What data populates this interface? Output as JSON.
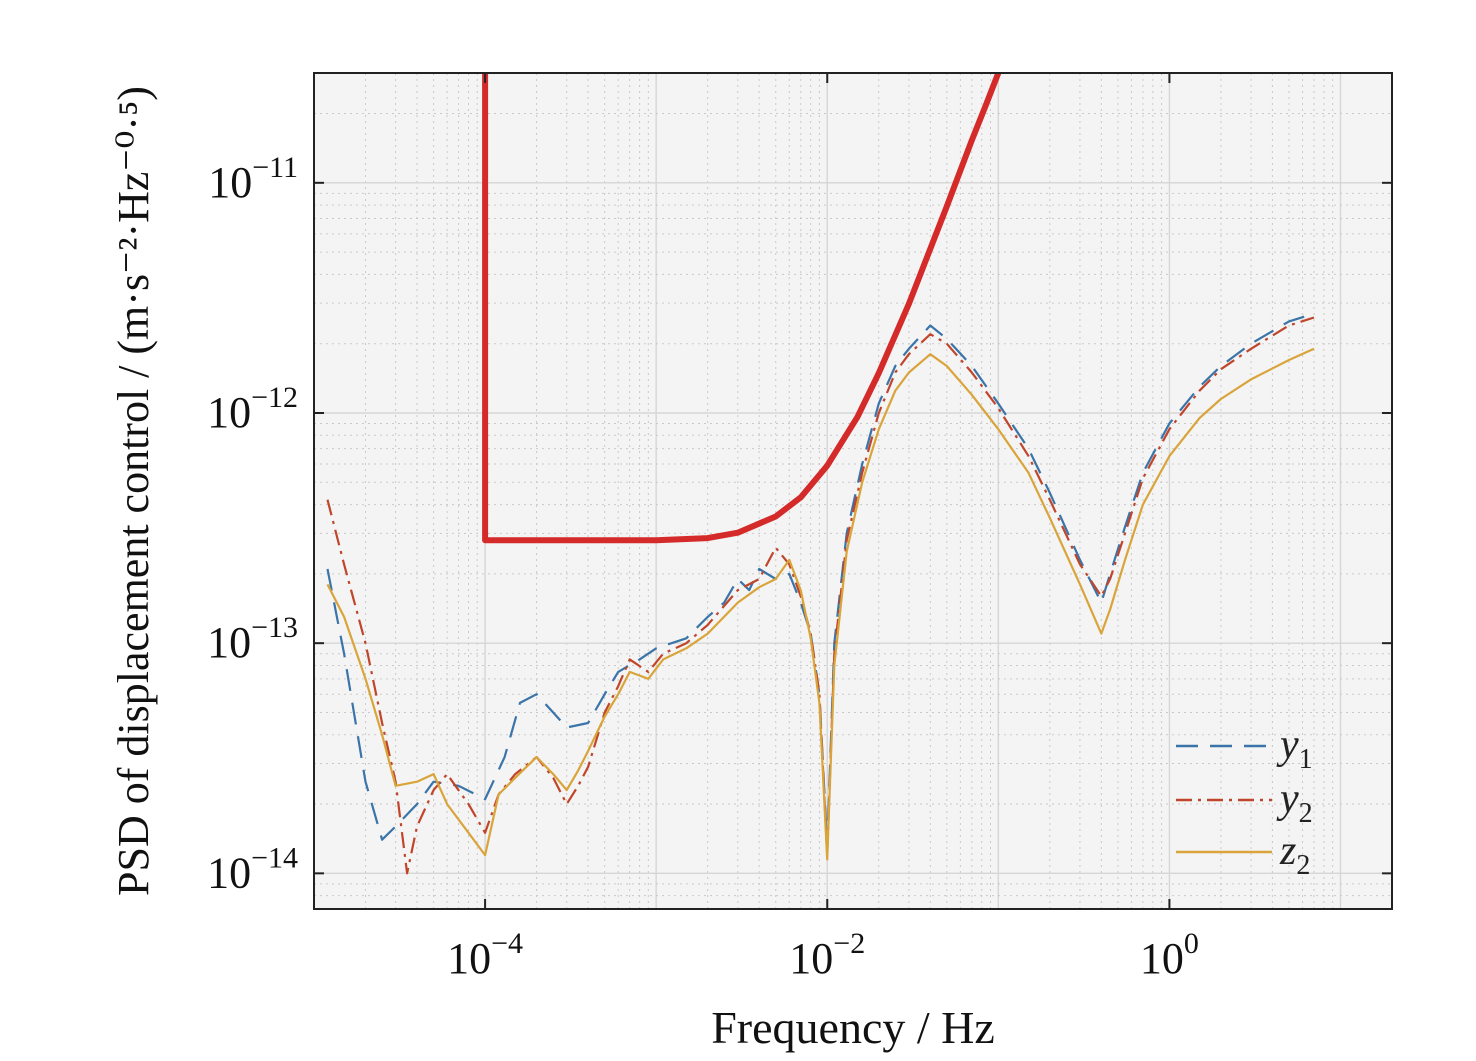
{
  "chart_data": {
    "type": "line",
    "title": "",
    "xlabel": "Frequency / Hz",
    "ylabel": "PSD of displacement control / (m·s⁻²·Hz⁻⁰·⁵)",
    "xscale": "log",
    "yscale": "log",
    "xlim": [
      1e-05,
      20
    ],
    "ylim": [
      7e-15,
      3e-11
    ],
    "grid": true,
    "legend_position": "bottom-right",
    "x_ticks": [
      {
        "value": 0.0001,
        "base": "10",
        "exp": "−4"
      },
      {
        "value": 0.01,
        "base": "10",
        "exp": "−2"
      },
      {
        "value": 1,
        "base": "10",
        "exp": "0"
      }
    ],
    "y_ticks": [
      {
        "value": 1e-14,
        "base": "10",
        "exp": "−14"
      },
      {
        "value": 1e-13,
        "base": "10",
        "exp": "−13"
      },
      {
        "value": 1e-12,
        "base": "10",
        "exp": "−12"
      },
      {
        "value": 1e-11,
        "base": "10",
        "exp": "−11"
      }
    ],
    "requirement": {
      "color": "#d42a2a",
      "points": [
        [
          0.0001,
          3e-11
        ],
        [
          0.0001,
          2.8e-13
        ],
        [
          0.001,
          2.8e-13
        ],
        [
          0.002,
          2.86e-13
        ],
        [
          0.003,
          3.02e-13
        ],
        [
          0.005,
          3.55e-13
        ],
        [
          0.007,
          4.3e-13
        ],
        [
          0.01,
          5.9e-13
        ],
        [
          0.015,
          9.6e-13
        ],
        [
          0.02,
          1.49e-12
        ],
        [
          0.03,
          2.98e-12
        ],
        [
          0.05,
          7.9e-12
        ],
        [
          0.07,
          1.53e-11
        ],
        [
          0.085,
          2.2e-11
        ],
        [
          0.1,
          3e-11
        ]
      ]
    },
    "series": [
      {
        "name": "y",
        "sub": "1",
        "color": "#3a74a8",
        "dash": "22,12",
        "points": [
          [
            1.2e-05,
            2.1e-13
          ],
          [
            1.5e-05,
            9e-14
          ],
          [
            2e-05,
            2.5e-14
          ],
          [
            2.5e-05,
            1.4e-14
          ],
          [
            3e-05,
            1.6e-14
          ],
          [
            4e-05,
            2e-14
          ],
          [
            5e-05,
            2.5e-14
          ],
          [
            7e-05,
            2.4e-14
          ],
          [
            0.0001,
            2.1e-14
          ],
          [
            0.00013,
            3.2e-14
          ],
          [
            0.00016,
            5.5e-14
          ],
          [
            0.0002,
            6e-14
          ],
          [
            0.00025,
            5e-14
          ],
          [
            0.0003,
            4.3e-14
          ],
          [
            0.0004,
            4.5e-14
          ],
          [
            0.0005,
            6e-14
          ],
          [
            0.0006,
            7.5e-14
          ],
          [
            0.0008,
            8.5e-14
          ],
          [
            0.001,
            9.5e-14
          ],
          [
            0.0015,
            1.05e-13
          ],
          [
            0.002,
            1.3e-13
          ],
          [
            0.0025,
            1.5e-13
          ],
          [
            0.003,
            1.9e-13
          ],
          [
            0.0035,
            1.7e-13
          ],
          [
            0.004,
            2.1e-13
          ],
          [
            0.005,
            1.9e-13
          ],
          [
            0.006,
            2e-13
          ],
          [
            0.007,
            1.5e-13
          ],
          [
            0.008,
            1.1e-13
          ],
          [
            0.009,
            6e-14
          ],
          [
            0.01,
            1.3e-14
          ],
          [
            0.011,
            1e-13
          ],
          [
            0.013,
            3e-13
          ],
          [
            0.016,
            6e-13
          ],
          [
            0.02,
            1.1e-12
          ],
          [
            0.025,
            1.6e-12
          ],
          [
            0.03,
            1.9e-12
          ],
          [
            0.04,
            2.4e-12
          ],
          [
            0.05,
            2.1e-12
          ],
          [
            0.07,
            1.6e-12
          ],
          [
            0.1,
            1.1e-12
          ],
          [
            0.15,
            7e-13
          ],
          [
            0.2,
            4.5e-13
          ],
          [
            0.3,
            2.3e-13
          ],
          [
            0.4,
            1.5e-13
          ],
          [
            0.45,
            2e-13
          ],
          [
            0.55,
            3.2e-13
          ],
          [
            0.7,
            5.5e-13
          ],
          [
            1,
            9e-13
          ],
          [
            1.5,
            1.3e-12
          ],
          [
            2,
            1.6e-12
          ],
          [
            3,
            2e-12
          ],
          [
            5,
            2.5e-12
          ],
          [
            7,
            2.7e-12
          ]
        ]
      },
      {
        "name": "y",
        "sub": "2",
        "color": "#c0452a",
        "dash": "16,6,3,6",
        "points": [
          [
            1.2e-05,
            4.2e-13
          ],
          [
            1.5e-05,
            2.2e-13
          ],
          [
            2e-05,
            1e-13
          ],
          [
            2.5e-05,
            4.5e-14
          ],
          [
            3e-05,
            2.5e-14
          ],
          [
            3.5e-05,
            1e-14
          ],
          [
            4e-05,
            1.6e-14
          ],
          [
            5e-05,
            2.3e-14
          ],
          [
            6e-05,
            2.7e-14
          ],
          [
            8e-05,
            2e-14
          ],
          [
            0.0001,
            1.5e-14
          ],
          [
            0.00012,
            2.2e-14
          ],
          [
            0.00015,
            2.7e-14
          ],
          [
            0.0002,
            3.2e-14
          ],
          [
            0.00025,
            2.6e-14
          ],
          [
            0.0003,
            2e-14
          ],
          [
            0.00035,
            2.4e-14
          ],
          [
            0.0004,
            2.9e-14
          ],
          [
            0.0005,
            5e-14
          ],
          [
            0.0006,
            6.5e-14
          ],
          [
            0.0007,
            8.5e-14
          ],
          [
            0.0009,
            7.5e-14
          ],
          [
            0.0011,
            9e-14
          ],
          [
            0.0015,
            1e-13
          ],
          [
            0.002,
            1.2e-13
          ],
          [
            0.003,
            1.7e-13
          ],
          [
            0.004,
            1.9e-13
          ],
          [
            0.005,
            2.6e-13
          ],
          [
            0.006,
            2.2e-13
          ],
          [
            0.007,
            1.6e-13
          ],
          [
            0.008,
            1.1e-13
          ],
          [
            0.009,
            6e-14
          ],
          [
            0.01,
            1.2e-14
          ],
          [
            0.011,
            9e-14
          ],
          [
            0.013,
            2.8e-13
          ],
          [
            0.016,
            5.5e-13
          ],
          [
            0.02,
            1e-12
          ],
          [
            0.025,
            1.5e-12
          ],
          [
            0.03,
            1.8e-12
          ],
          [
            0.04,
            2.2e-12
          ],
          [
            0.05,
            2e-12
          ],
          [
            0.07,
            1.5e-12
          ],
          [
            0.1,
            1.05e-12
          ],
          [
            0.15,
            6.5e-13
          ],
          [
            0.2,
            4.2e-13
          ],
          [
            0.3,
            2.2e-13
          ],
          [
            0.4,
            1.6e-13
          ],
          [
            0.45,
            1.9e-13
          ],
          [
            0.55,
            3e-13
          ],
          [
            0.7,
            5.2e-13
          ],
          [
            1,
            8.5e-13
          ],
          [
            1.5,
            1.25e-12
          ],
          [
            2,
            1.55e-12
          ],
          [
            3,
            1.9e-12
          ],
          [
            5,
            2.4e-12
          ],
          [
            7,
            2.6e-12
          ]
        ]
      },
      {
        "name": "z",
        "sub": "2",
        "color": "#d9a43a",
        "dash": "",
        "points": [
          [
            1.2e-05,
            1.8e-13
          ],
          [
            1.5e-05,
            1.3e-13
          ],
          [
            2e-05,
            7e-14
          ],
          [
            2.5e-05,
            4e-14
          ],
          [
            3e-05,
            2.4e-14
          ],
          [
            4e-05,
            2.5e-14
          ],
          [
            5e-05,
            2.7e-14
          ],
          [
            6e-05,
            2e-14
          ],
          [
            8e-05,
            1.5e-14
          ],
          [
            0.0001,
            1.2e-14
          ],
          [
            0.00012,
            2.2e-14
          ],
          [
            0.00015,
            2.6e-14
          ],
          [
            0.0002,
            3.2e-14
          ],
          [
            0.00025,
            2.7e-14
          ],
          [
            0.0003,
            2.3e-14
          ],
          [
            0.00035,
            2.8e-14
          ],
          [
            0.0004,
            3.4e-14
          ],
          [
            0.0005,
            4.8e-14
          ],
          [
            0.0006,
            6e-14
          ],
          [
            0.0007,
            7.5e-14
          ],
          [
            0.0009,
            7e-14
          ],
          [
            0.0011,
            8.5e-14
          ],
          [
            0.0015,
            9.5e-14
          ],
          [
            0.002,
            1.1e-13
          ],
          [
            0.003,
            1.5e-13
          ],
          [
            0.004,
            1.75e-13
          ],
          [
            0.005,
            1.9e-13
          ],
          [
            0.006,
            2.3e-13
          ],
          [
            0.007,
            1.7e-13
          ],
          [
            0.008,
            1.05e-13
          ],
          [
            0.009,
            5.5e-14
          ],
          [
            0.01,
            1.15e-14
          ],
          [
            0.011,
            8e-14
          ],
          [
            0.013,
            2.5e-13
          ],
          [
            0.016,
            5e-13
          ],
          [
            0.02,
            8.5e-13
          ],
          [
            0.025,
            1.25e-12
          ],
          [
            0.03,
            1.5e-12
          ],
          [
            0.04,
            1.8e-12
          ],
          [
            0.05,
            1.6e-12
          ],
          [
            0.07,
            1.2e-12
          ],
          [
            0.1,
            8.5e-13
          ],
          [
            0.15,
            5.5e-13
          ],
          [
            0.2,
            3.5e-13
          ],
          [
            0.3,
            1.8e-13
          ],
          [
            0.4,
            1.1e-13
          ],
          [
            0.45,
            1.4e-13
          ],
          [
            0.55,
            2.3e-13
          ],
          [
            0.7,
            4e-13
          ],
          [
            1,
            6.5e-13
          ],
          [
            1.5,
            9.5e-13
          ],
          [
            2,
            1.15e-12
          ],
          [
            3,
            1.4e-12
          ],
          [
            5,
            1.7e-12
          ],
          [
            7,
            1.9e-12
          ]
        ]
      }
    ]
  }
}
